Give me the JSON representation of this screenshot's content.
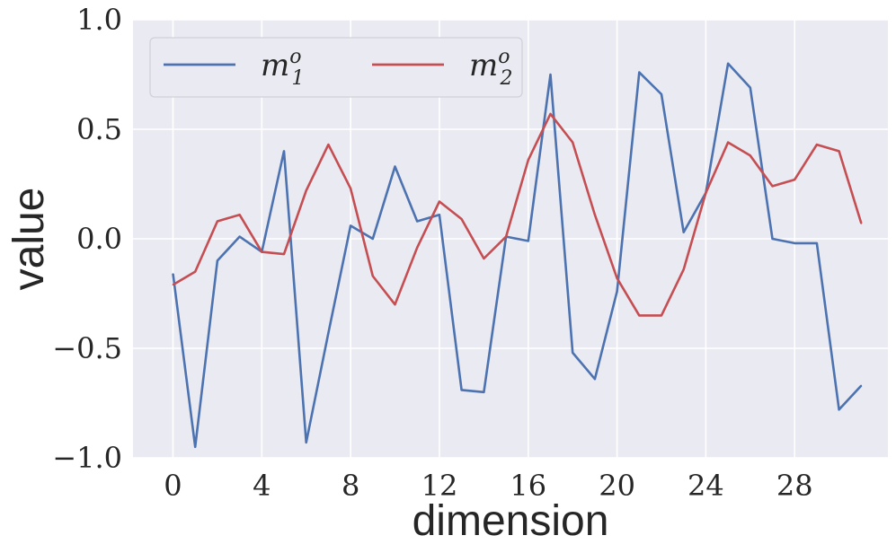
{
  "chart_data": {
    "type": "line",
    "xlabel": "dimension",
    "ylabel": "value",
    "xlim": [
      -1.8,
      32.2
    ],
    "ylim": [
      -1.0,
      1.0
    ],
    "xticks": [
      0,
      4,
      8,
      12,
      16,
      20,
      24,
      28
    ],
    "xtick_labels": [
      "0",
      "4",
      "8",
      "12",
      "16",
      "20",
      "24",
      "28"
    ],
    "yticks": [
      -1.0,
      -0.5,
      0.0,
      0.5,
      1.0
    ],
    "ytick_labels": [
      "−1.0",
      "−0.5",
      "0.0",
      "0.5",
      "1.0"
    ],
    "grid": true,
    "legend_placement": "top-left",
    "x": [
      0,
      1,
      2,
      3,
      4,
      5,
      6,
      7,
      8,
      9,
      10,
      11,
      12,
      13,
      14,
      15,
      16,
      17,
      18,
      19,
      20,
      21,
      22,
      23,
      24,
      25,
      26,
      27,
      28,
      29,
      30,
      31
    ],
    "series": [
      {
        "name": "m",
        "name_sup": "o",
        "name_sub": "1",
        "color": "#4C72B0",
        "values": [
          -0.16,
          -0.95,
          -0.1,
          0.01,
          -0.06,
          0.4,
          -0.93,
          -0.43,
          0.06,
          0.0,
          0.33,
          0.08,
          0.11,
          -0.69,
          -0.7,
          0.01,
          -0.01,
          0.75,
          -0.52,
          -0.64,
          -0.24,
          0.76,
          0.66,
          0.03,
          0.21,
          0.8,
          0.69,
          0.0,
          -0.02,
          -0.02,
          -0.78,
          -0.67
        ]
      },
      {
        "name": "m",
        "name_sup": "o",
        "name_sub": "2",
        "color": "#C44E52",
        "values": [
          -0.21,
          -0.15,
          0.08,
          0.11,
          -0.06,
          -0.07,
          0.22,
          0.43,
          0.23,
          -0.17,
          -0.3,
          -0.04,
          0.17,
          0.09,
          -0.09,
          0.01,
          0.36,
          0.57,
          0.44,
          0.11,
          -0.18,
          -0.35,
          -0.35,
          -0.14,
          0.21,
          0.44,
          0.38,
          0.24,
          0.27,
          0.43,
          0.4,
          0.07
        ]
      }
    ]
  }
}
